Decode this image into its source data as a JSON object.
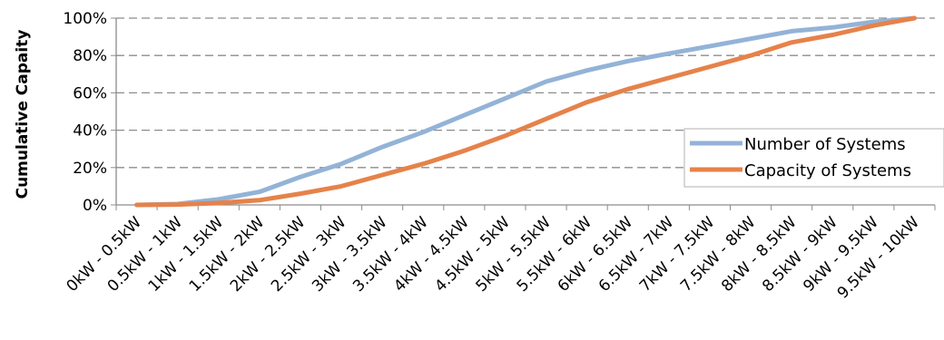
{
  "chart_data": {
    "type": "line",
    "title": "",
    "xlabel": "",
    "ylabel": "Cumulative Capaity",
    "categories": [
      "0kW - 0.5kW",
      "0.5kW - 1kW",
      "1kW - 1.5kW",
      "1.5kW - 2kW",
      "2kW - 2.5kW",
      "2.5kW - 3kW",
      "3kW - 3.5kW",
      "3.5kW - 4kW",
      "4kW - 4.5kW",
      "4.5kW - 5kW",
      "5kW - 5.5kW",
      "5.5kW - 6kW",
      "6kW - 6.5kW",
      "6.5kW - 7kW",
      "7kW - 7.5kW",
      "7.5kW - 8kW",
      "8kW - 8.5kW",
      "8.5kW - 9kW",
      "9kW - 9.5kW",
      "9.5kW - 10kW"
    ],
    "y_ticks": [
      "0%",
      "20%",
      "40%",
      "60%",
      "80%",
      "100%"
    ],
    "ylim": [
      0,
      100
    ],
    "grid": "horizontal dashed",
    "legend_position": "right",
    "series": [
      {
        "name": "Number of Systems",
        "color": "#93b3d7",
        "values": [
          0,
          0.5,
          3,
          7,
          15,
          22,
          31,
          39,
          48,
          57,
          66,
          72,
          77,
          81,
          85,
          89,
          93,
          95,
          98,
          100
        ]
      },
      {
        "name": "Capacity of Systems",
        "color": "#e6824a",
        "values": [
          0,
          0.2,
          1,
          2.5,
          6,
          10,
          16,
          22,
          29,
          37,
          46,
          55,
          62,
          68,
          74,
          80,
          87,
          91,
          96,
          100
        ]
      }
    ]
  }
}
